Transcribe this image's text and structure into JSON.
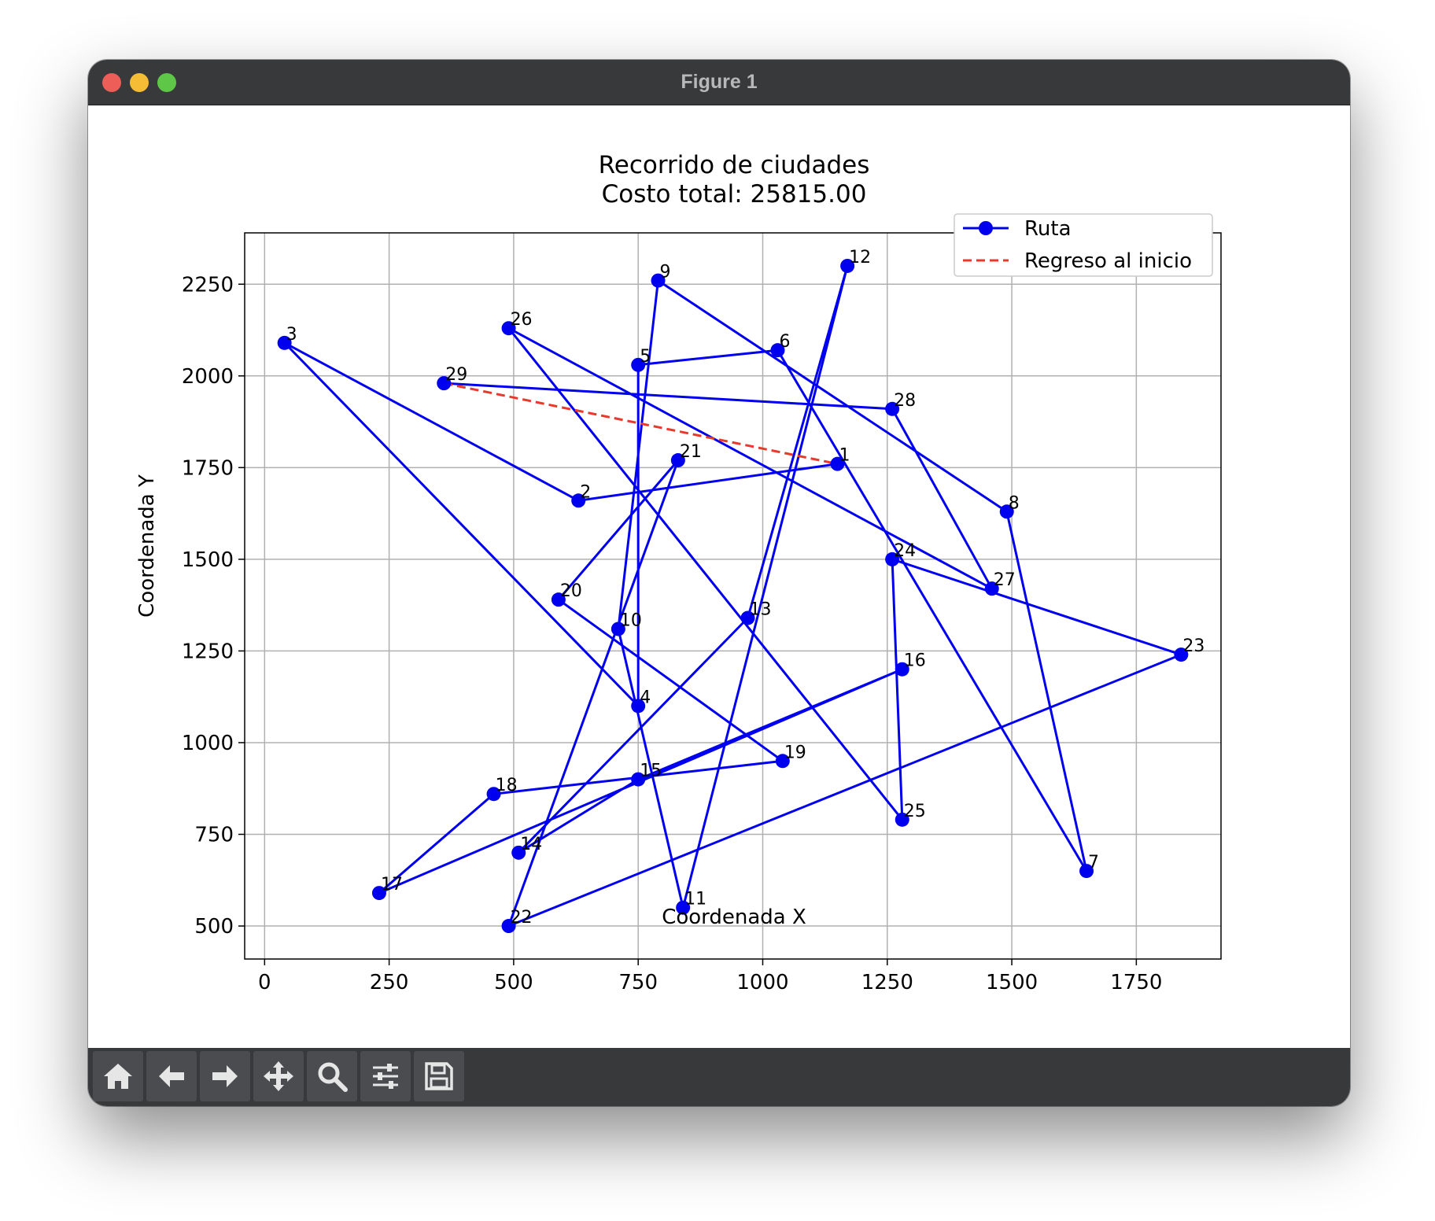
{
  "window": {
    "title": "Figure 1"
  },
  "toolbar": {
    "icons": [
      "home-icon",
      "back-arrow-icon",
      "forward-arrow-icon",
      "pan-move-icon",
      "zoom-magnifier-icon",
      "configure-subplots-icon",
      "save-floppy-icon"
    ]
  },
  "colors": {
    "route": "#0000ee",
    "return": "#e8392c"
  },
  "chart_data": {
    "type": "line",
    "title": "Recorrido de ciudades",
    "subtitle": "Costo total: 25815.00",
    "xlabel": "Coordenada X",
    "ylabel": "Coordenada Y",
    "xlim": [
      -40,
      1920
    ],
    "ylim": [
      410,
      2390
    ],
    "xticks": [
      0,
      250,
      500,
      750,
      1000,
      1250,
      1500,
      1750
    ],
    "yticks": [
      500,
      750,
      1000,
      1250,
      1500,
      1750,
      2000,
      2250
    ],
    "grid": true,
    "legend": {
      "placement": "top-right",
      "entries": [
        "Ruta",
        "Regreso al inicio"
      ]
    },
    "cities": [
      {
        "id": "1",
        "x": 1150,
        "y": 1760
      },
      {
        "id": "2",
        "x": 630,
        "y": 1660
      },
      {
        "id": "3",
        "x": 40,
        "y": 2090
      },
      {
        "id": "4",
        "x": 750,
        "y": 1100
      },
      {
        "id": "5",
        "x": 750,
        "y": 2030
      },
      {
        "id": "6",
        "x": 1030,
        "y": 2070
      },
      {
        "id": "7",
        "x": 1650,
        "y": 650
      },
      {
        "id": "8",
        "x": 1490,
        "y": 1630
      },
      {
        "id": "9",
        "x": 790,
        "y": 2260
      },
      {
        "id": "10",
        "x": 710,
        "y": 1310
      },
      {
        "id": "11",
        "x": 840,
        "y": 550
      },
      {
        "id": "12",
        "x": 1170,
        "y": 2300
      },
      {
        "id": "13",
        "x": 970,
        "y": 1340
      },
      {
        "id": "14",
        "x": 510,
        "y": 700
      },
      {
        "id": "15",
        "x": 750,
        "y": 900
      },
      {
        "id": "16",
        "x": 1280,
        "y": 1200
      },
      {
        "id": "17",
        "x": 230,
        "y": 590
      },
      {
        "id": "18",
        "x": 460,
        "y": 860
      },
      {
        "id": "19",
        "x": 1040,
        "y": 950
      },
      {
        "id": "20",
        "x": 590,
        "y": 1390
      },
      {
        "id": "21",
        "x": 830,
        "y": 1770
      },
      {
        "id": "22",
        "x": 490,
        "y": 500
      },
      {
        "id": "23",
        "x": 1840,
        "y": 1240
      },
      {
        "id": "24",
        "x": 1260,
        "y": 1500
      },
      {
        "id": "25",
        "x": 1280,
        "y": 790
      },
      {
        "id": "26",
        "x": 490,
        "y": 2130
      },
      {
        "id": "27",
        "x": 1460,
        "y": 1420
      },
      {
        "id": "28",
        "x": 1260,
        "y": 1910
      },
      {
        "id": "29",
        "x": 360,
        "y": 1980
      }
    ],
    "route": [
      "1",
      "2",
      "3",
      "4",
      "5",
      "6",
      "7",
      "8",
      "9",
      "10",
      "11",
      "12",
      "13",
      "14",
      "15",
      "16",
      "17",
      "18",
      "19",
      "20",
      "21",
      "22",
      "23",
      "24",
      "25",
      "26",
      "27",
      "28",
      "29"
    ],
    "return_segment": [
      "29",
      "1"
    ]
  }
}
